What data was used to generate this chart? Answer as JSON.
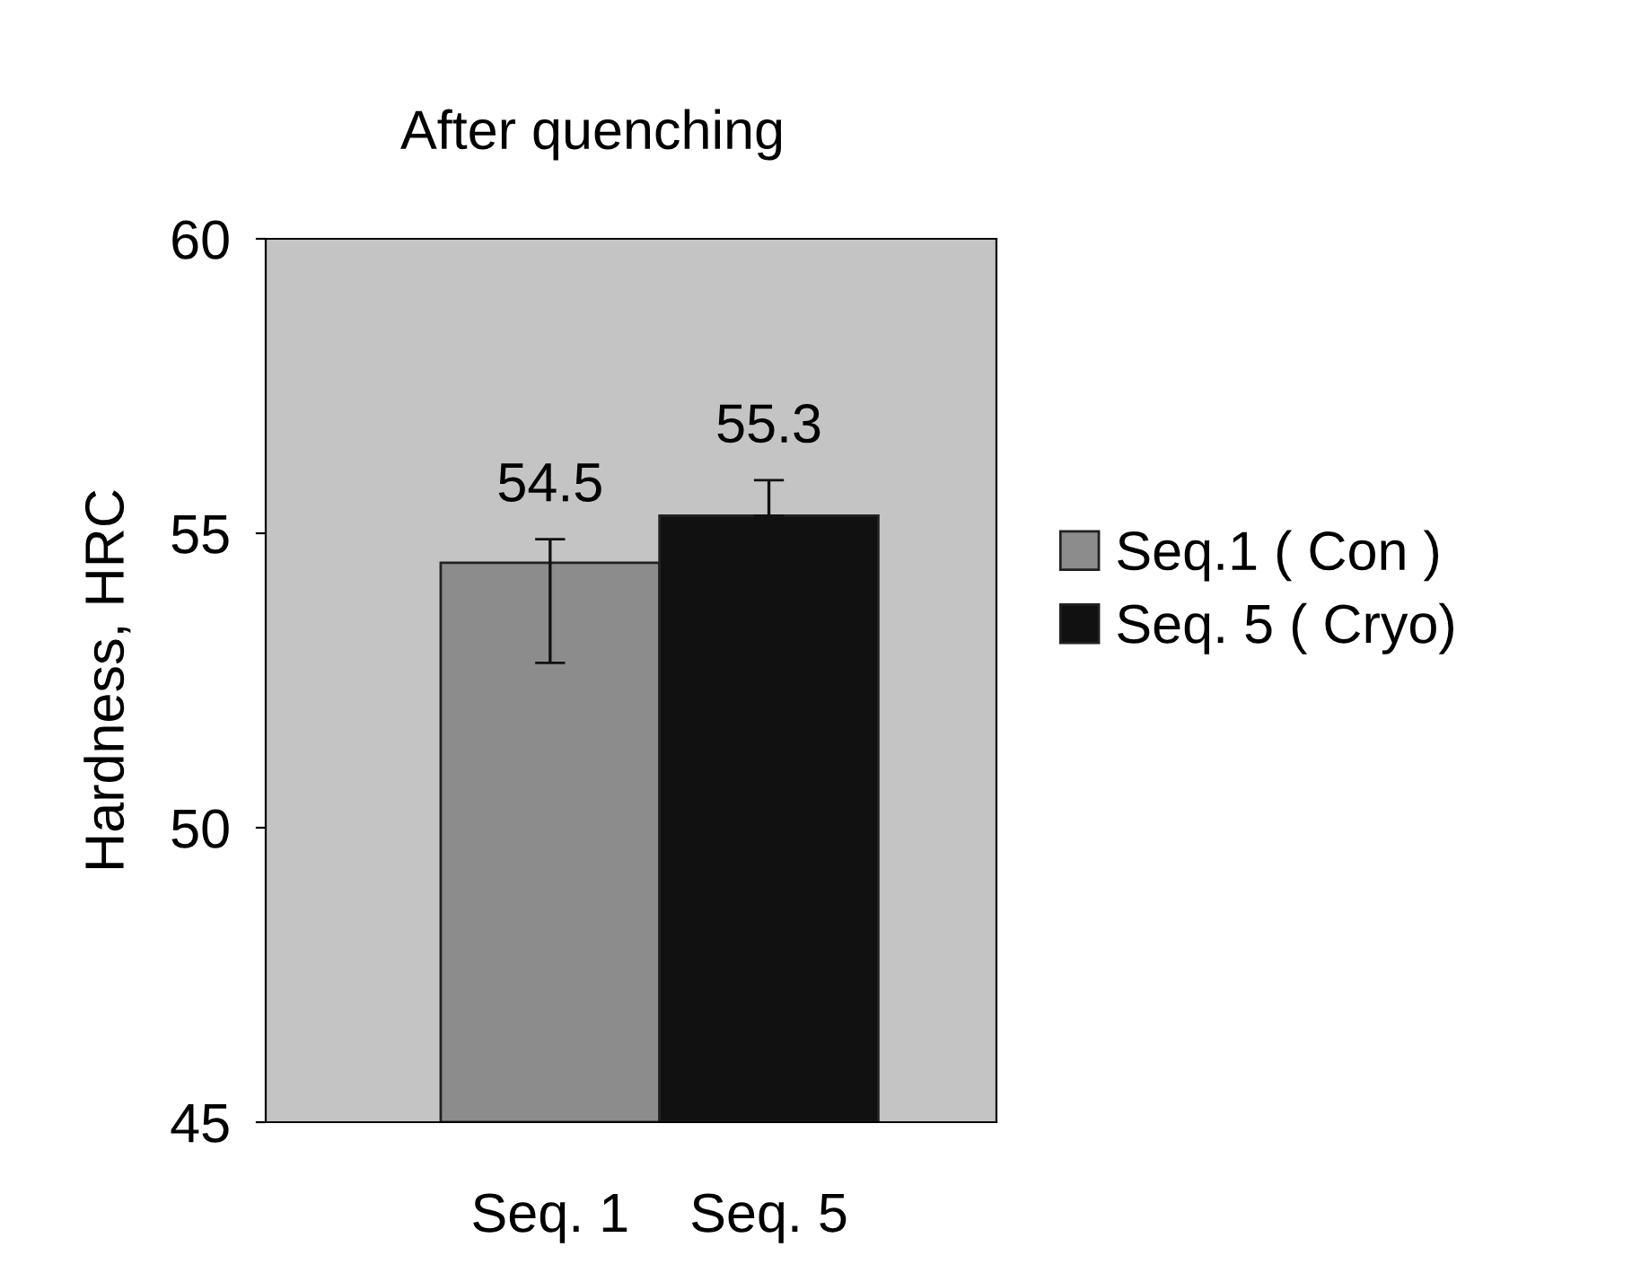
{
  "chart_data": {
    "type": "bar",
    "title": "After quenching",
    "ylabel": "Hardness, HRC",
    "categories": [
      "Seq. 1",
      "Seq. 5"
    ],
    "series": [
      {
        "name": "Seq.1 ( Con )",
        "color": "#8c8c8c",
        "values": [
          54.5,
          null
        ],
        "errors": [
          [
            52.8,
            54.9
          ],
          null
        ]
      },
      {
        "name": "Seq. 5 ( Cryo)",
        "color": "#111111",
        "values": [
          null,
          55.3
        ],
        "errors": [
          null,
          [
            55.3,
            55.9
          ]
        ]
      }
    ],
    "ylim": [
      45,
      60
    ],
    "yticks": [
      45,
      50,
      55,
      60
    ],
    "data_labels": true,
    "legend": "right",
    "grid": false
  }
}
